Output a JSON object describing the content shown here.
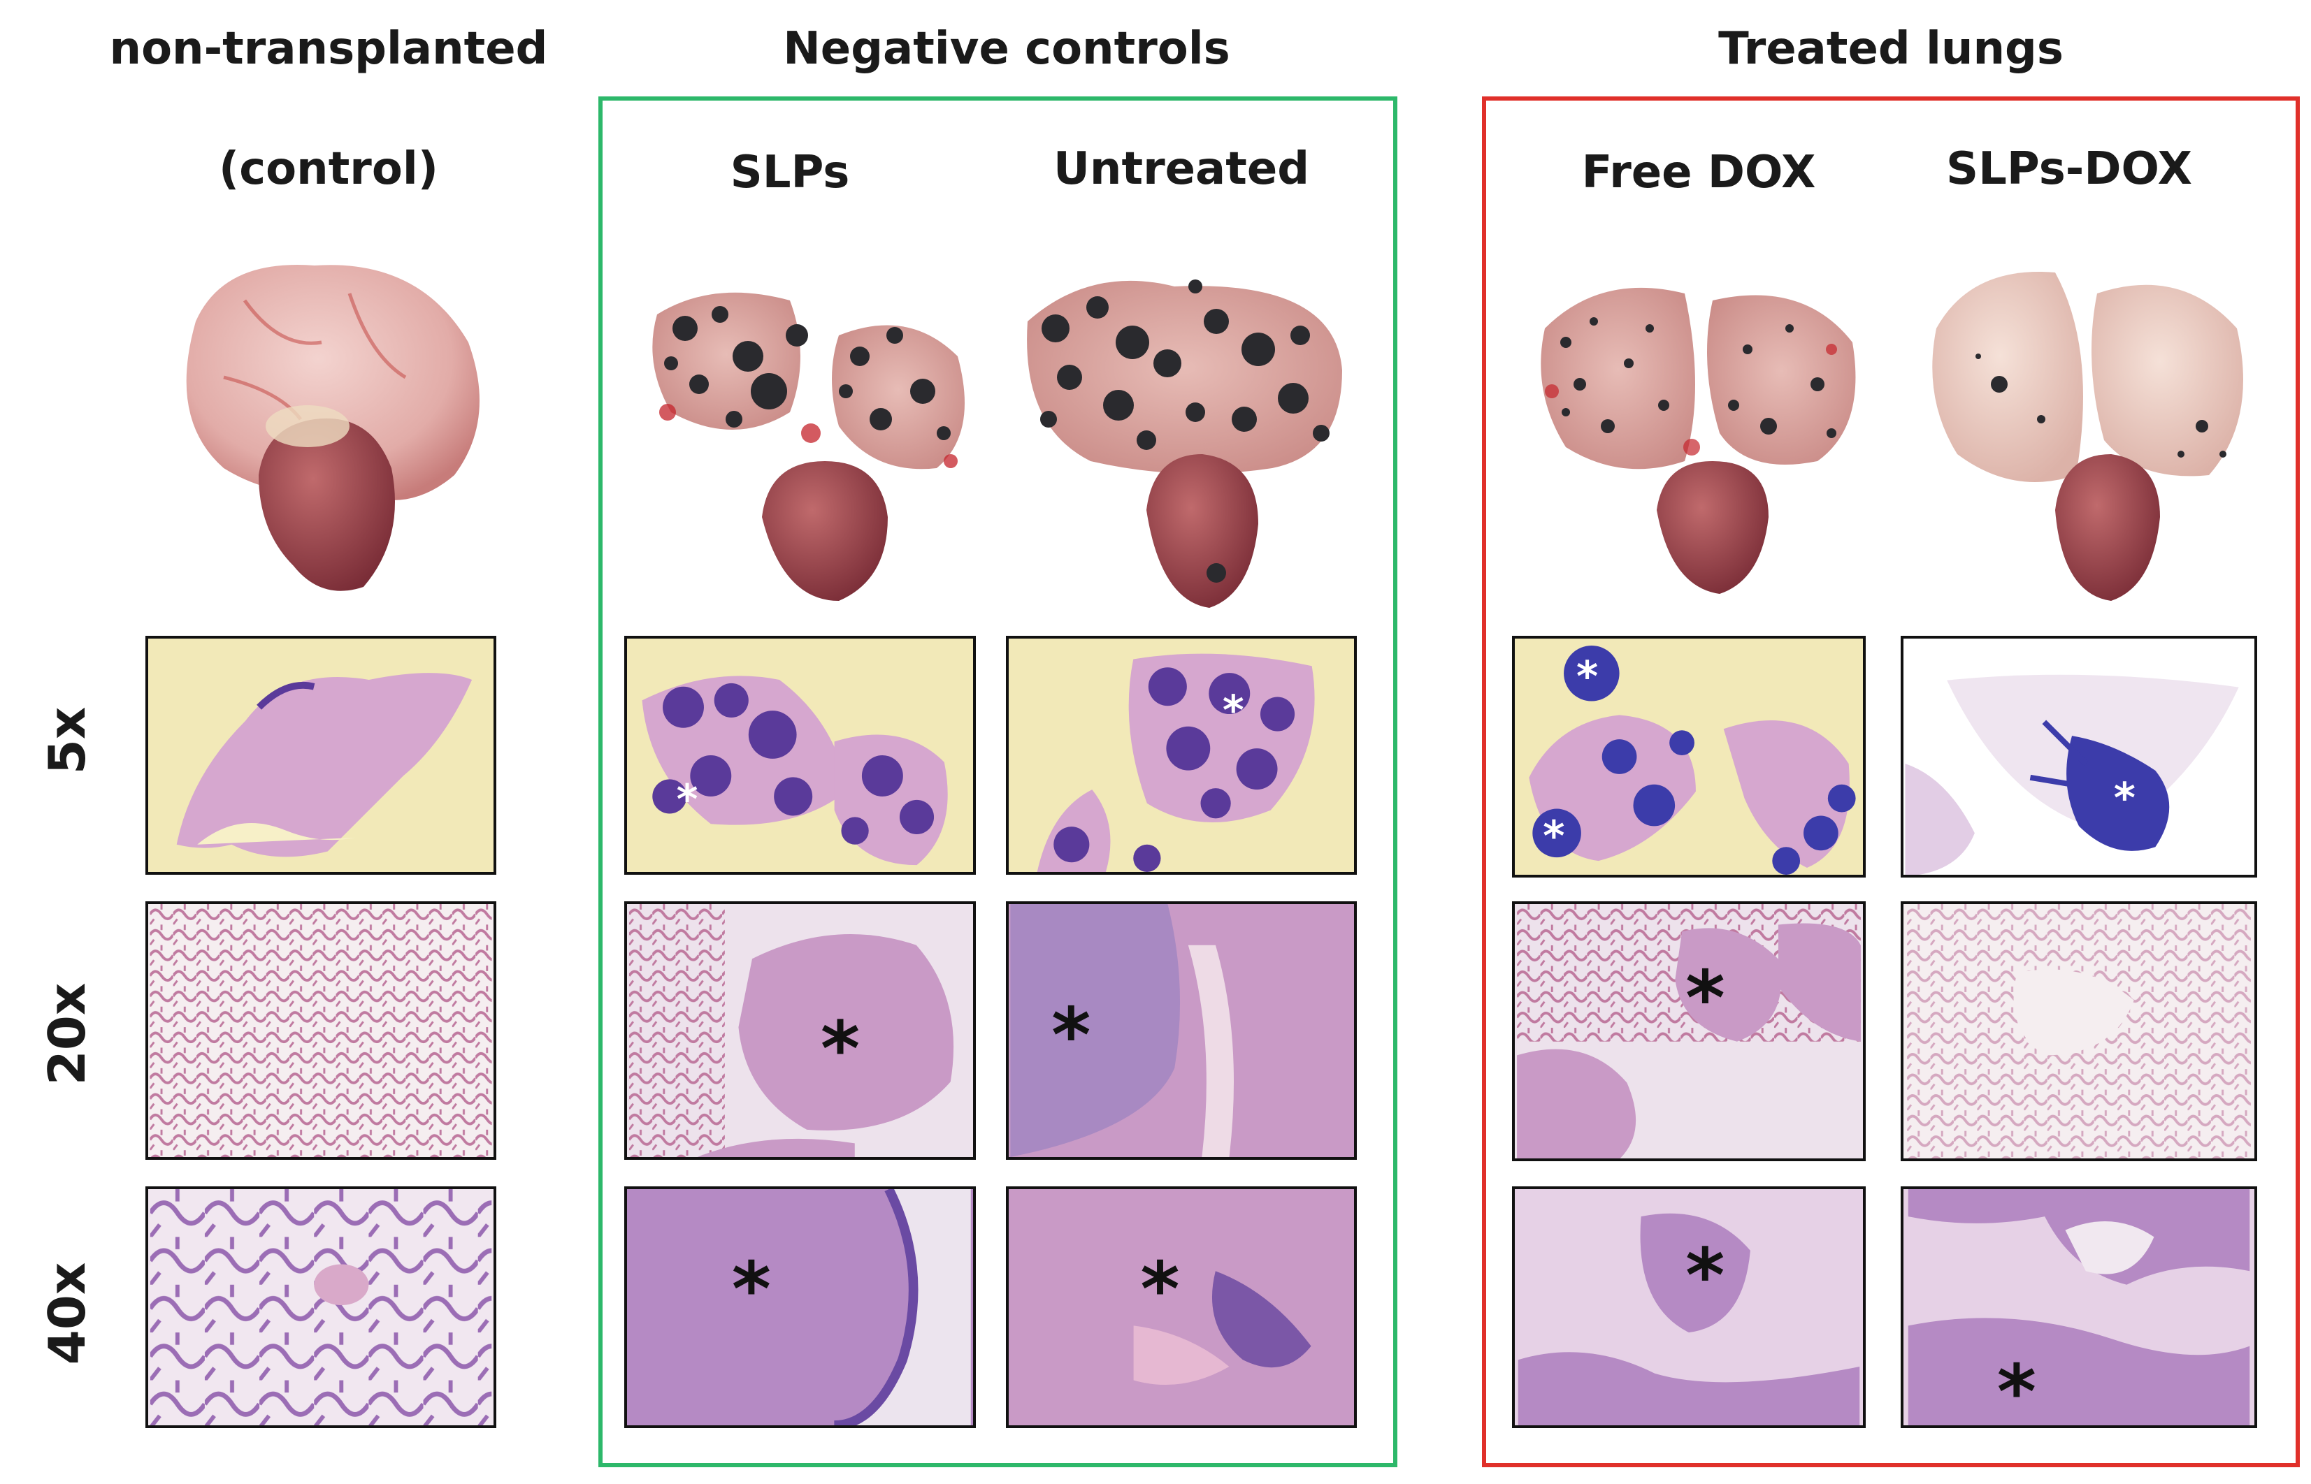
{
  "headers": {
    "col1_line1": "non-transplanted",
    "col1_line2": "(control)",
    "group_negative": "Negative controls",
    "group_treated": "Treated lungs",
    "slps": "SLPs",
    "untreated": "Untreated",
    "free_dox": "Free DOX",
    "slps_dox": "SLPs-DOX"
  },
  "rows": {
    "r5x": "5x",
    "r20x": "20x",
    "r40x": "40x"
  },
  "markers": {
    "tumor": "*"
  },
  "colors": {
    "negative_box": "#2db86a",
    "treated_box": "#e0302a",
    "he_pink": "#d9a9c9",
    "he_purple": "#5a3a9a",
    "lung_pink": "#e7bdb8",
    "tumor_black": "#2a2a2e"
  }
}
